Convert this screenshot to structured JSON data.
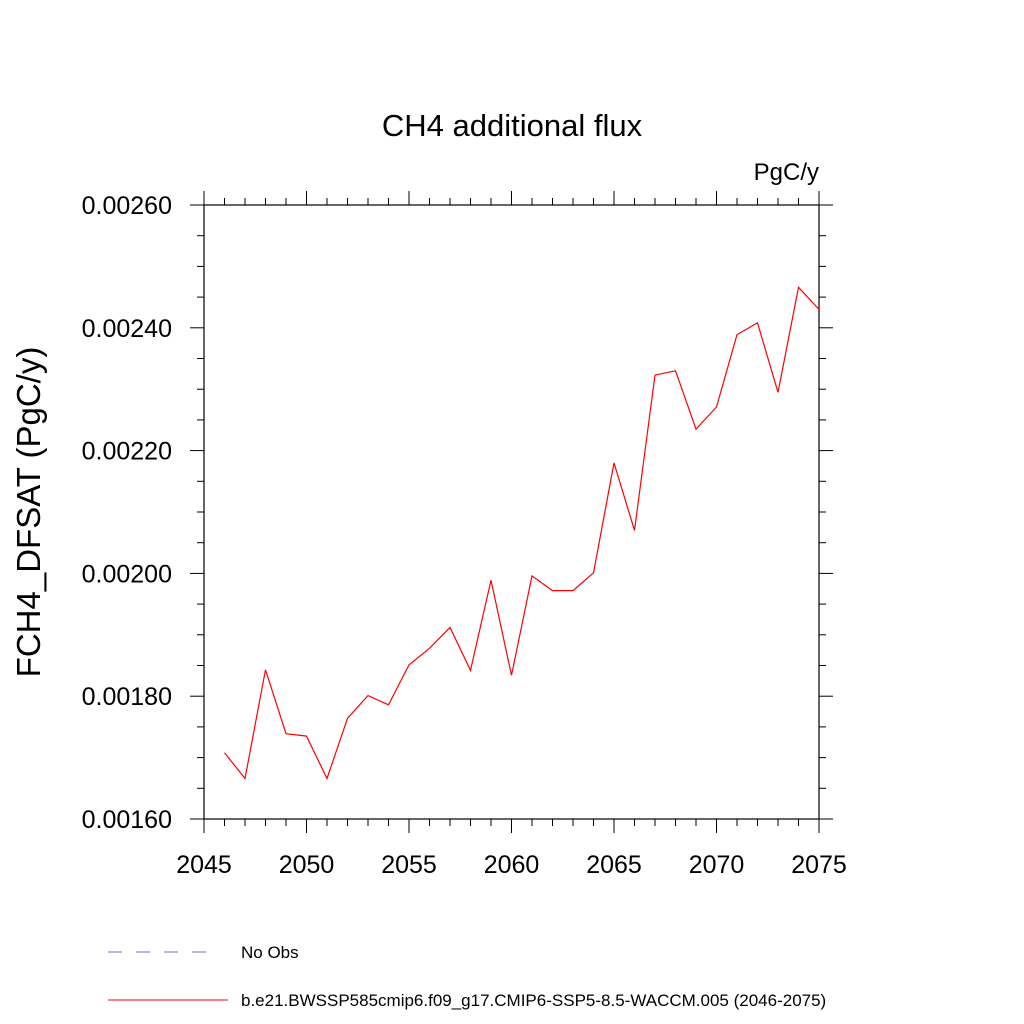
{
  "chart_data": {
    "type": "line",
    "title": "CH4 additional flux",
    "units_label": "PgC/y",
    "ylabel": "FCH4_DFSAT  (PgC/y)",
    "xlabel": "",
    "xlim": [
      2045,
      2075
    ],
    "ylim": [
      0.0016,
      0.0026
    ],
    "x_ticks": [
      2045,
      2050,
      2055,
      2060,
      2065,
      2070,
      2075
    ],
    "x_tick_labels": [
      "2045",
      "2050",
      "2055",
      "2060",
      "2065",
      "2070",
      "2075"
    ],
    "y_ticks": [
      0.0016,
      0.0018,
      0.002,
      0.0022,
      0.0024,
      0.0026
    ],
    "y_tick_labels": [
      "0.00160",
      "0.00180",
      "0.00200",
      "0.00220",
      "0.00240",
      "0.00260"
    ],
    "grid": false,
    "legend_position": "bottom",
    "series": [
      {
        "name": "b.e21.BWSSP585cmip6.f09_g17.CMIP6-SSP5-8.5-WACCM.005 (2046-2075)",
        "color": "#ff0000",
        "style": "solid",
        "x": [
          2046,
          2047,
          2048,
          2049,
          2050,
          2051,
          2052,
          2053,
          2054,
          2055,
          2056,
          2057,
          2058,
          2059,
          2060,
          2061,
          2062,
          2063,
          2064,
          2065,
          2066,
          2067,
          2068,
          2069,
          2070,
          2071,
          2072,
          2073,
          2074,
          2075
        ],
        "values": [
          0.001708,
          0.001666,
          0.001843,
          0.001739,
          0.001735,
          0.001666,
          0.001764,
          0.001801,
          0.001786,
          0.001851,
          0.001878,
          0.001912,
          0.001842,
          0.001989,
          0.001834,
          0.001996,
          0.001972,
          0.001972,
          0.002001,
          0.00218,
          0.00207,
          0.002323,
          0.00233,
          0.002235,
          0.002271,
          0.002389,
          0.002408,
          0.002295,
          0.002466,
          0.00243
        ]
      },
      {
        "name": "No Obs",
        "color": "#7b68c8",
        "style": "dashed",
        "x": [],
        "values": []
      }
    ]
  }
}
